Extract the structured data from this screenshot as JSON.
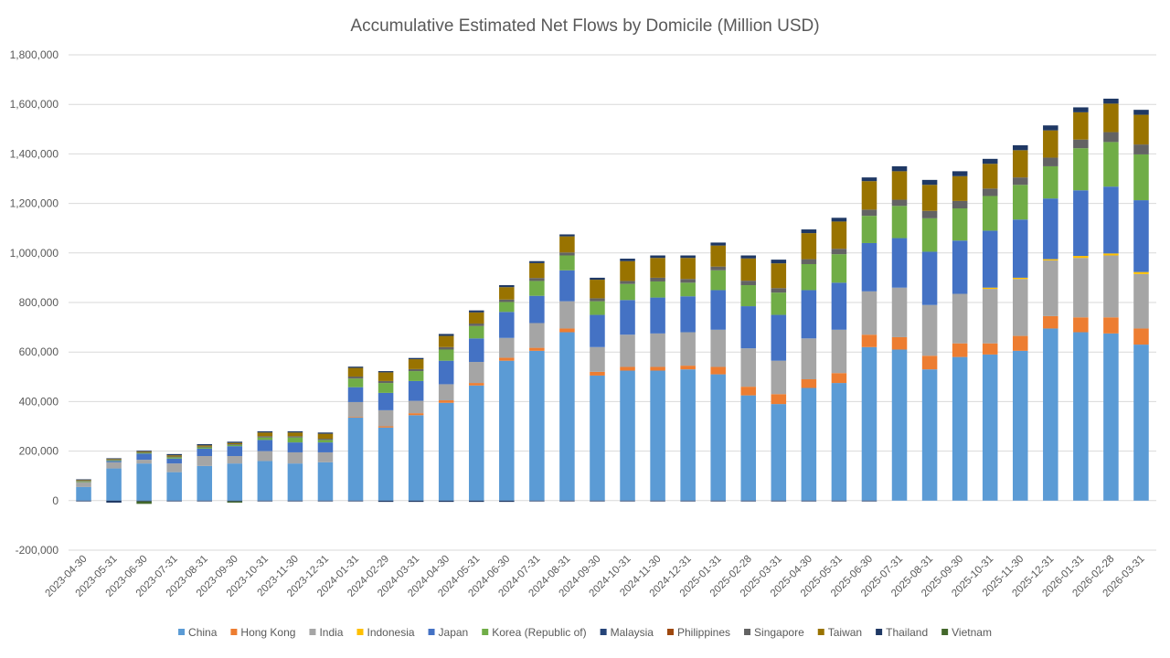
{
  "chart_data": {
    "type": "bar",
    "stacked": true,
    "title": "Accumulative Estimated Net Flows by Domicile (Million USD)",
    "xlabel": "",
    "ylabel": "",
    "ylim": [
      -200000,
      1800000
    ],
    "yticks": [
      -200000,
      0,
      200000,
      400000,
      600000,
      800000,
      1000000,
      1200000,
      1400000,
      1600000,
      1800000
    ],
    "ytick_labels": [
      "-200,000",
      "0",
      "200,000",
      "400,000",
      "600,000",
      "800,000",
      "1,000,000",
      "1,200,000",
      "1,400,000",
      "1,600,000",
      "1,800,000"
    ],
    "grid": true,
    "legend": "bottom",
    "categories": [
      "2023-04-30",
      "2023-05-31",
      "2023-06-30",
      "2023-07-31",
      "2023-08-31",
      "2023-09-30",
      "2023-10-31",
      "2023-11-30",
      "2023-12-31",
      "2024-01-31",
      "2024-02-29",
      "2024-03-31",
      "2024-04-30",
      "2024-05-31",
      "2024-06-30",
      "2024-07-31",
      "2024-08-31",
      "2024-09-30",
      "2024-10-31",
      "2024-11-30",
      "2024-12-31",
      "2025-01-31",
      "2025-02-28",
      "2025-03-31",
      "2025-04-30",
      "2025-05-31",
      "2025-06-30",
      "2025-07-31",
      "2025-08-31",
      "2025-09-30",
      "2025-10-31",
      "2025-11-30",
      "2025-12-31",
      "2026-01-31",
      "2026-02-28",
      "2026-03-31"
    ],
    "series": [
      {
        "name": "China",
        "color": "#5b9bd5",
        "values": [
          55000,
          130000,
          150000,
          115000,
          140000,
          150000,
          160000,
          150000,
          155000,
          335000,
          295000,
          345000,
          395000,
          465000,
          565000,
          605000,
          680000,
          505000,
          525000,
          525000,
          530000,
          510000,
          425000,
          390000,
          455000,
          475000,
          620000,
          610000,
          530000,
          580000,
          590000,
          605000,
          695000,
          680000,
          675000,
          630000
        ]
      },
      {
        "name": "Hong Kong",
        "color": "#ed7d31",
        "values": [
          0,
          0,
          0,
          0,
          0,
          0,
          0,
          0,
          0,
          3000,
          5000,
          8000,
          10000,
          10000,
          12000,
          12000,
          15000,
          15000,
          15000,
          15000,
          15000,
          30000,
          35000,
          40000,
          35000,
          40000,
          50000,
          50000,
          55000,
          55000,
          45000,
          60000,
          50000,
          60000,
          65000,
          65000
        ]
      },
      {
        "name": "India",
        "color": "#a5a5a5",
        "values": [
          20000,
          25000,
          15000,
          35000,
          40000,
          30000,
          40000,
          45000,
          40000,
          60000,
          65000,
          50000,
          65000,
          85000,
          80000,
          100000,
          110000,
          100000,
          130000,
          135000,
          135000,
          150000,
          155000,
          135000,
          165000,
          175000,
          175000,
          200000,
          205000,
          200000,
          220000,
          230000,
          225000,
          240000,
          250000,
          220000
        ]
      },
      {
        "name": "Indonesia",
        "color": "#ffc000",
        "values": [
          0,
          0,
          0,
          0,
          0,
          0,
          0,
          0,
          0,
          0,
          0,
          0,
          0,
          0,
          0,
          0,
          0,
          0,
          0,
          0,
          0,
          0,
          0,
          0,
          0,
          0,
          0,
          0,
          0,
          0,
          5000,
          5000,
          5000,
          8000,
          8000,
          8000
        ]
      },
      {
        "name": "Japan",
        "color": "#4472c4",
        "values": [
          0,
          5000,
          25000,
          20000,
          30000,
          40000,
          45000,
          40000,
          40000,
          60000,
          70000,
          80000,
          95000,
          95000,
          105000,
          110000,
          125000,
          130000,
          140000,
          145000,
          145000,
          160000,
          170000,
          185000,
          195000,
          190000,
          195000,
          200000,
          215000,
          215000,
          230000,
          235000,
          245000,
          265000,
          270000,
          290000
        ]
      },
      {
        "name": "Korea (Republic of)",
        "color": "#70ad47",
        "values": [
          3000,
          3000,
          3000,
          5000,
          5000,
          5000,
          10000,
          20000,
          10000,
          35000,
          40000,
          40000,
          45000,
          50000,
          40000,
          60000,
          60000,
          55000,
          65000,
          65000,
          55000,
          80000,
          85000,
          90000,
          105000,
          115000,
          110000,
          130000,
          135000,
          130000,
          140000,
          140000,
          130000,
          170000,
          180000,
          185000
        ]
      },
      {
        "name": "Malaysia",
        "color": "#264478",
        "values": [
          0,
          0,
          0,
          0,
          0,
          0,
          0,
          0,
          0,
          0,
          0,
          0,
          0,
          0,
          0,
          0,
          0,
          0,
          0,
          0,
          0,
          0,
          0,
          0,
          0,
          0,
          0,
          0,
          0,
          0,
          0,
          0,
          0,
          0,
          0,
          0
        ]
      },
      {
        "name": "Philippines",
        "color": "#9e480e",
        "values": [
          0,
          0,
          0,
          0,
          0,
          0,
          0,
          0,
          0,
          0,
          0,
          0,
          0,
          0,
          0,
          0,
          0,
          0,
          0,
          0,
          0,
          0,
          0,
          0,
          0,
          0,
          0,
          0,
          0,
          0,
          0,
          0,
          0,
          0,
          0,
          0
        ]
      },
      {
        "name": "Singapore",
        "color": "#636363",
        "values": [
          2000,
          2000,
          3000,
          3000,
          3000,
          3000,
          5000,
          5000,
          5000,
          8000,
          8000,
          8000,
          10000,
          10000,
          10000,
          12000,
          12000,
          12000,
          12000,
          15000,
          15000,
          15000,
          18000,
          18000,
          20000,
          22000,
          25000,
          25000,
          30000,
          30000,
          30000,
          30000,
          35000,
          35000,
          40000,
          40000
        ]
      },
      {
        "name": "Taiwan",
        "color": "#997300",
        "values": [
          3000,
          3000,
          3000,
          5000,
          5000,
          5000,
          15000,
          15000,
          20000,
          35000,
          35000,
          40000,
          45000,
          45000,
          50000,
          60000,
          65000,
          75000,
          80000,
          80000,
          85000,
          85000,
          90000,
          100000,
          105000,
          110000,
          115000,
          115000,
          105000,
          100000,
          100000,
          110000,
          110000,
          110000,
          115000,
          120000
        ]
      },
      {
        "name": "Thailand",
        "color": "#1f3864",
        "values": [
          3000,
          3000,
          3000,
          5000,
          5000,
          5000,
          5000,
          5000,
          5000,
          5000,
          5000,
          5000,
          8000,
          8000,
          8000,
          8000,
          8000,
          8000,
          10000,
          10000,
          10000,
          12000,
          12000,
          15000,
          15000,
          15000,
          15000,
          20000,
          20000,
          20000,
          20000,
          20000,
          20000,
          20000,
          20000,
          20000
        ]
      },
      {
        "name": "Vietnam",
        "color": "#43682b",
        "values": [
          0,
          0,
          0,
          0,
          0,
          0,
          0,
          0,
          0,
          0,
          0,
          0,
          0,
          0,
          0,
          0,
          0,
          0,
          0,
          0,
          0,
          0,
          0,
          0,
          0,
          0,
          0,
          0,
          0,
          0,
          0,
          0,
          0,
          0,
          0,
          0
        ]
      }
    ],
    "negative_series": [
      {
        "name": "Thailand",
        "values": [
          -3000,
          -8000,
          -3000,
          -3000,
          -3000,
          -3000,
          -3000,
          -3000,
          -3000,
          -3000,
          -5000,
          -5000,
          -5000,
          -5000,
          -5000,
          -3000,
          -3000,
          -3000,
          -3000,
          -3000,
          -3000,
          -3000,
          -3000,
          -3000,
          -3000,
          -3000,
          -3000,
          0,
          0,
          0,
          0,
          0,
          0,
          0,
          0,
          0
        ]
      },
      {
        "name": "Vietnam",
        "values": [
          0,
          0,
          -10000,
          0,
          0,
          -5000,
          0,
          0,
          0,
          0,
          0,
          0,
          0,
          0,
          0,
          0,
          0,
          0,
          0,
          0,
          0,
          0,
          0,
          0,
          0,
          0,
          0,
          0,
          0,
          0,
          0,
          0,
          0,
          0,
          0,
          0
        ]
      }
    ]
  }
}
